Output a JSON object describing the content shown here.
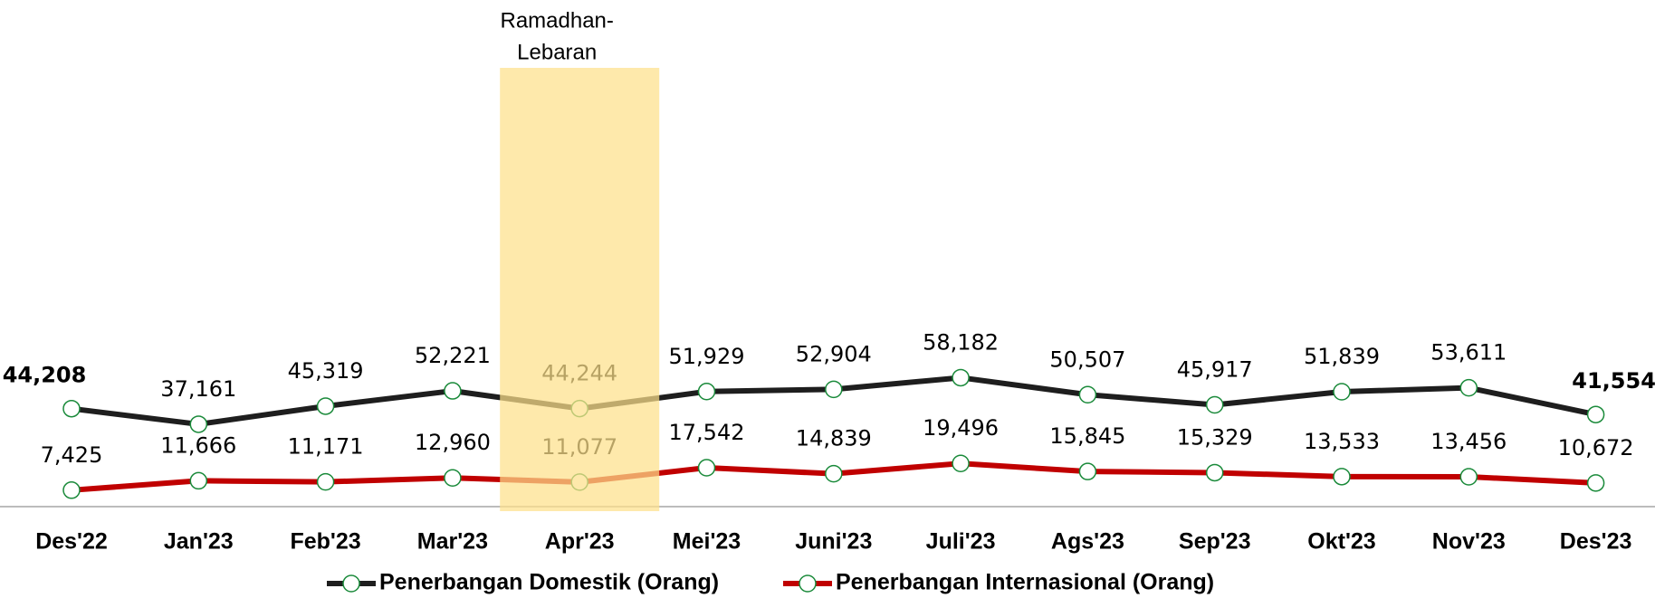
{
  "chart_data": {
    "type": "line",
    "annotation_lines": [
      "Ramadhan-",
      "Lebaran"
    ],
    "highlight_category": "Apr'23",
    "highlight_color": "#fde08a",
    "categories": [
      "Des'22",
      "Jan'23",
      "Feb'23",
      "Mar'23",
      "Apr'23",
      "Mei'23",
      "Juni'23",
      "Juli'23",
      "Ags'23",
      "Sep'23",
      "Okt'23",
      "Nov'23",
      "Des'23"
    ],
    "ylim": [
      0,
      220000
    ],
    "marker_color": "#1a8a3a",
    "series": [
      {
        "name": "Penerbangan Domestik (Orang)",
        "color": "#1e1e1e",
        "values": [
          44208,
          37161,
          45319,
          52221,
          44244,
          51929,
          52904,
          58182,
          50507,
          45917,
          51839,
          53611,
          41554
        ],
        "value_labels": [
          "44,208",
          "37,161",
          "45,319",
          "52,221",
          "44,244",
          "51,929",
          "52,904",
          "58,182",
          "50,507",
          "45,917",
          "51,839",
          "53,611",
          "41,554"
        ],
        "bold_labels": [
          0,
          12
        ]
      },
      {
        "name": "Penerbangan Internasional (Orang)",
        "color": "#c00000",
        "values": [
          7425,
          11666,
          11171,
          12960,
          11077,
          17542,
          14839,
          19496,
          15845,
          15329,
          13533,
          13456,
          10672
        ],
        "value_labels": [
          "7,425",
          "11,666",
          "11,171",
          "12,960",
          "11,077",
          "17,542",
          "14,839",
          "19,496",
          "15,845",
          "15,329",
          "13,533",
          "13,456",
          "10,672"
        ],
        "bold_labels": []
      }
    ]
  }
}
